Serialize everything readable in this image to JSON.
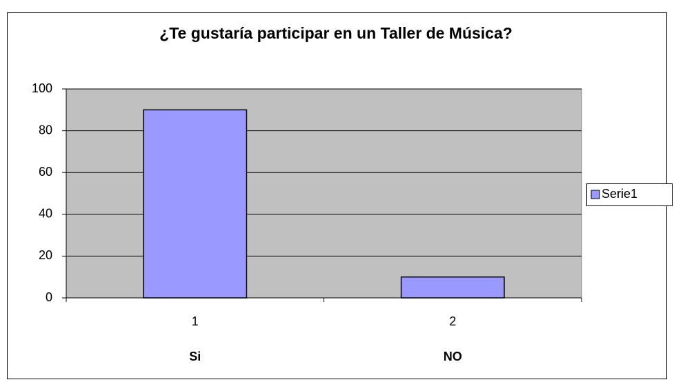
{
  "chart_data": {
    "type": "bar",
    "title": "¿Te gustaría participar en un Taller de Música?",
    "categories": [
      "1",
      "2"
    ],
    "category_labels": [
      "Si",
      "NO"
    ],
    "series": [
      {
        "name": "Serie1",
        "color": "#9999ff",
        "values": [
          90,
          10
        ]
      }
    ],
    "ylim": [
      0,
      100
    ],
    "yticks": [
      0,
      20,
      40,
      60,
      80,
      100
    ],
    "grid": true,
    "legend": "right",
    "plot_background": "#c0c0c0"
  }
}
